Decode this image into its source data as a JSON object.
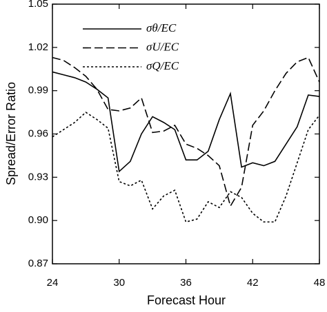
{
  "chart_data": {
    "type": "line",
    "x_label": "Forecast Hour",
    "y_label": "Spread/Error Ratio",
    "x": [
      24,
      25,
      26,
      27,
      28,
      29,
      30,
      31,
      32,
      33,
      34,
      35,
      36,
      37,
      38,
      39,
      40,
      41,
      42,
      43,
      44,
      45,
      46,
      47,
      48
    ],
    "series": [
      {
        "name": "σθ/EC",
        "color": "#000000",
        "dash": "solid",
        "values": [
          1.003,
          1.001,
          0.999,
          0.996,
          0.991,
          0.985,
          0.934,
          0.941,
          0.96,
          0.972,
          0.968,
          0.963,
          0.942,
          0.942,
          0.948,
          0.97,
          0.988,
          0.937,
          0.94,
          0.938,
          0.941,
          0.953,
          0.965,
          0.987,
          0.986
        ]
      },
      {
        "name": "σU/EC",
        "color": "#000000",
        "dash": "dashed",
        "values": [
          1.013,
          1.011,
          1.006,
          1.0,
          0.991,
          0.977,
          0.976,
          0.978,
          0.985,
          0.961,
          0.962,
          0.966,
          0.953,
          0.95,
          0.945,
          0.938,
          0.91,
          0.923,
          0.966,
          0.976,
          0.99,
          1.002,
          1.01,
          1.013,
          0.996
        ]
      },
      {
        "name": "σQ/EC",
        "color": "#000000",
        "dash": "dotted",
        "values": [
          0.958,
          0.963,
          0.968,
          0.975,
          0.97,
          0.964,
          0.927,
          0.924,
          0.928,
          0.908,
          0.917,
          0.921,
          0.899,
          0.901,
          0.913,
          0.909,
          0.92,
          0.916,
          0.905,
          0.899,
          0.899,
          0.917,
          0.94,
          0.963,
          0.973
        ]
      }
    ],
    "xlim": [
      24,
      48
    ],
    "xticks": [
      24,
      30,
      36,
      42,
      48
    ],
    "ylim": [
      0.87,
      1.05
    ],
    "yticks": [
      0.87,
      {
        "value": 0.9,
        "label": "0.90"
      },
      0.93,
      0.96,
      0.99,
      1.02,
      1.05
    ],
    "legend": "upper left",
    "grid": false
  }
}
